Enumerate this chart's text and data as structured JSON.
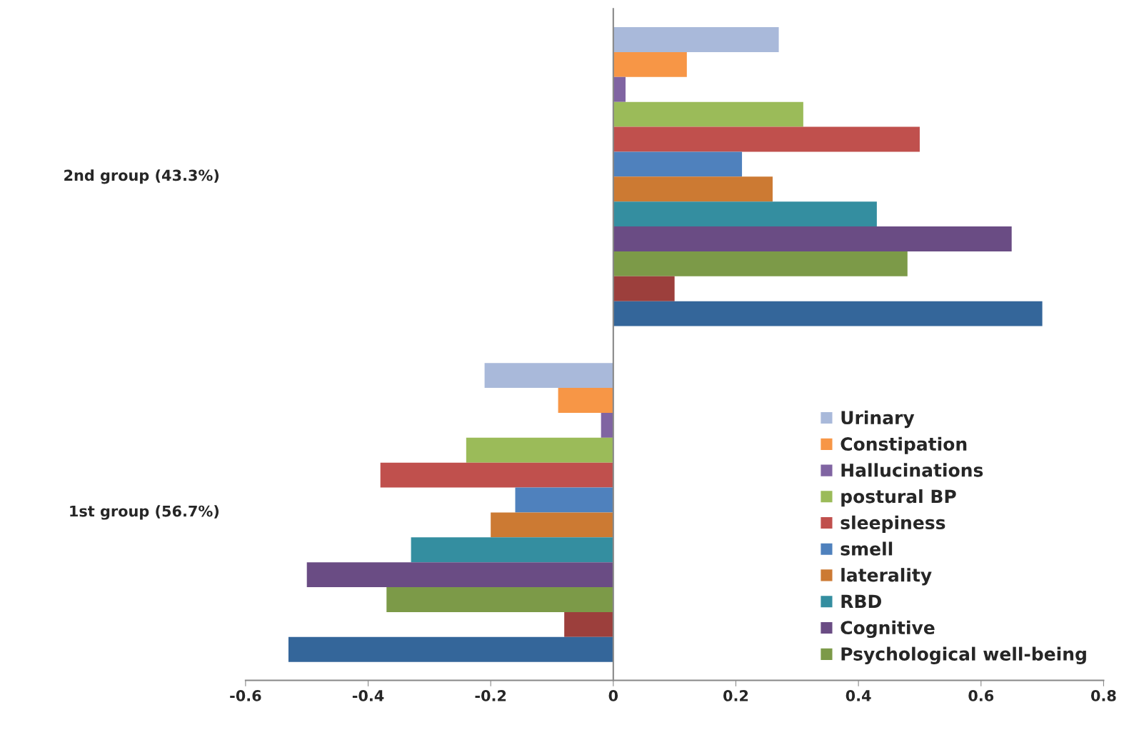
{
  "chart_data": {
    "type": "bar",
    "orientation": "horizontal",
    "categories": [
      "2nd group (43.3%)",
      "1st group (56.7%)"
    ],
    "series": [
      {
        "name": "Urinary",
        "color": "#a9b9da",
        "values": [
          0.27,
          -0.21
        ]
      },
      {
        "name": "Constipation",
        "color": "#f79646",
        "values": [
          0.12,
          -0.09
        ]
      },
      {
        "name": "Hallucinations",
        "color": "#8064a2",
        "values": [
          0.02,
          -0.02
        ]
      },
      {
        "name": "postural BP",
        "color": "#9bbb59",
        "values": [
          0.31,
          -0.24
        ]
      },
      {
        "name": "sleepiness",
        "color": "#c0504d",
        "values": [
          0.5,
          -0.38
        ]
      },
      {
        "name": "smell",
        "color": "#4f81bd",
        "values": [
          0.21,
          -0.16
        ]
      },
      {
        "name": "laterality",
        "color": "#cc7a33",
        "values": [
          0.26,
          -0.2
        ]
      },
      {
        "name": "RBD",
        "color": "#348ea0",
        "values": [
          0.43,
          -0.33
        ]
      },
      {
        "name": "Cognitive",
        "color": "#6a4c84",
        "values": [
          0.65,
          -0.5
        ]
      },
      {
        "name": "Psychological well-being",
        "color": "#7c9a48",
        "values": [
          0.48,
          -0.37
        ]
      },
      {
        "color": "#9c3f3c",
        "values": [
          0.1,
          -0.08
        ]
      },
      {
        "color": "#34669a",
        "values": [
          0.7,
          -0.53
        ]
      }
    ],
    "xlim": [
      -0.6,
      0.8
    ],
    "xticks": [
      -0.6,
      -0.4,
      -0.2,
      0,
      0.2,
      0.4,
      0.6,
      0.8
    ],
    "legend": "bottom right"
  }
}
